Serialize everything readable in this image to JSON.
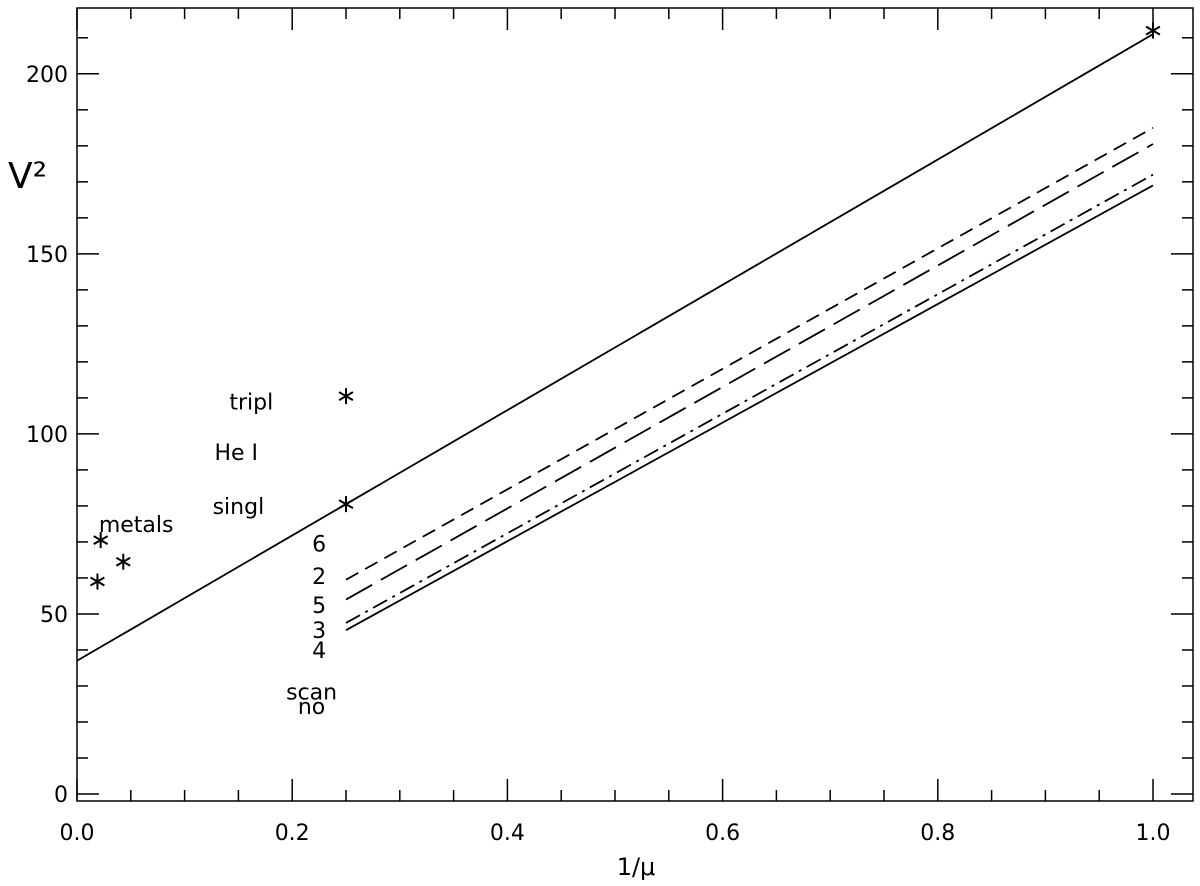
{
  "chart_data": {
    "type": "line",
    "xlabel": "1/μ",
    "ylabel": "V²",
    "xlim": [
      0.0,
      1.05
    ],
    "ylim": [
      -2,
      220
    ],
    "x_ticks": [
      0.0,
      0.2,
      0.4,
      0.6,
      0.8,
      1.0
    ],
    "x_tick_labels": [
      "0.0",
      "0.2",
      "0.4",
      "0.6",
      "0.8",
      "1.0"
    ],
    "y_ticks": [
      0,
      50,
      100,
      150,
      200
    ],
    "y_tick_labels": [
      "0",
      "50",
      "100",
      "150",
      "200"
    ],
    "grid": false,
    "series": [
      {
        "style": "solid",
        "x": [
          0.0,
          1.0
        ],
        "y": [
          37,
          211
        ]
      },
      {
        "style": "dashed",
        "x": [
          0.25,
          1.0
        ],
        "y": [
          59.5,
          185
        ]
      },
      {
        "style": "long-dashed",
        "x": [
          0.25,
          1.0
        ],
        "y": [
          54,
          180.5
        ]
      },
      {
        "style": "dash-dot",
        "x": [
          0.25,
          1.0
        ],
        "y": [
          47.5,
          172
        ]
      },
      {
        "style": "solid",
        "x": [
          0.25,
          1.0
        ],
        "y": [
          45.5,
          169
        ]
      }
    ],
    "points": [
      {
        "x": 0.019,
        "y": 59
      },
      {
        "x": 0.022,
        "y": 70.5
      },
      {
        "x": 0.043,
        "y": 64.5
      },
      {
        "x": 0.25,
        "y": 80.5
      },
      {
        "x": 0.25,
        "y": 110.5
      },
      {
        "x": 1.0,
        "y": 212
      }
    ],
    "annotations": [
      {
        "text": "metals",
        "x": 0.055,
        "y": 75
      },
      {
        "text": "singl",
        "x": 0.15,
        "y": 80
      },
      {
        "text": "He I",
        "x": 0.148,
        "y": 95
      },
      {
        "text": "tripl",
        "x": 0.162,
        "y": 109
      },
      {
        "text": "6",
        "x": 0.225,
        "y": 69.5
      },
      {
        "text": "2",
        "x": 0.225,
        "y": 60.5
      },
      {
        "text": "5",
        "x": 0.225,
        "y": 52.5
      },
      {
        "text": "3",
        "x": 0.225,
        "y": 45.5
      },
      {
        "text": "4",
        "x": 0.225,
        "y": 40
      },
      {
        "text": "scan",
        "x": 0.218,
        "y": 28.5
      },
      {
        "text": "no",
        "x": 0.218,
        "y": 24.5
      }
    ]
  }
}
